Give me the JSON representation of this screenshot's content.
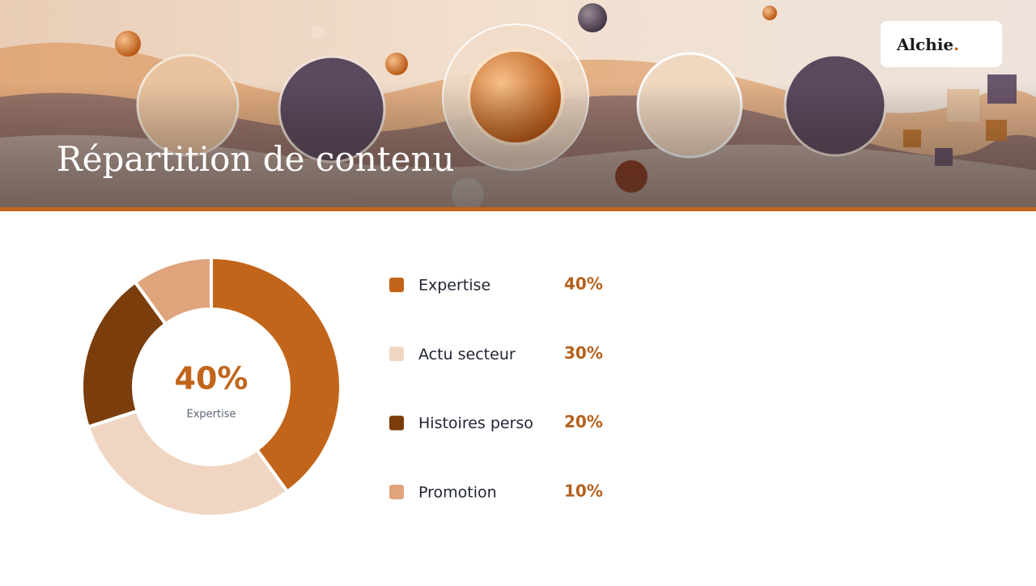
{
  "header": {
    "title": "Répartition de contenu",
    "logo": {
      "name": "Alchie",
      "dot": "."
    }
  },
  "chart_data": {
    "type": "pie",
    "donut": true,
    "categories": [
      "Expertise",
      "Actu secteur",
      "Histoires perso",
      "Promotion"
    ],
    "values": [
      40,
      30,
      20,
      10
    ],
    "value_labels": [
      "40%",
      "30%",
      "20%",
      "10%"
    ],
    "colors": [
      "#c2651a",
      "#f0d6c2",
      "#7a3d0b",
      "#dfa47c"
    ],
    "center_index": 0
  }
}
